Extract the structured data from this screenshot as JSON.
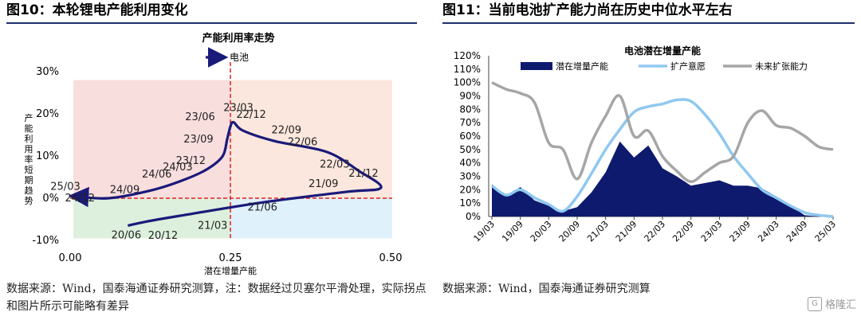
{
  "left_panel": {
    "figure_title": "图10：本轮锂电产能利用变化",
    "source_note": "数据来源：Wind，国泰海通证券研究测算，注：数据经过贝塞尔平滑处理，实际拐点和图片所示可能略有差异"
  },
  "right_panel": {
    "figure_title": "图11：当前电池扩产能力尚在历史中位水平左右",
    "source_note": "数据来源：Wind，国泰海通证券研究测算"
  },
  "watermark": {
    "text": "格隆汇",
    "icon": "gelonghui-logo-icon"
  },
  "chart_data": [
    {
      "type": "line",
      "title": "产能利用率走势",
      "legend": [
        "电池"
      ],
      "legend_position": "top",
      "xlabel": "潜在增量产能",
      "ylabel": "产能利用率短期趋势",
      "xlim": [
        0,
        0.5
      ],
      "ylim": [
        -0.1,
        0.3
      ],
      "x_ticks": [
        "0.00",
        "0.25",
        "0.50"
      ],
      "y_ticks": [
        "-10%",
        "0%",
        "10%",
        "20%",
        "30%"
      ],
      "reference_lines": {
        "x": 0.25,
        "y": 0.0,
        "style": "dashed",
        "color": "#e02020"
      },
      "quadrant_colors": [
        "#f9dede",
        "#fbe7dd",
        "#ddf0dd",
        "#dff1fa"
      ],
      "series": [
        {
          "name": "电池",
          "color": "#1a1a7a",
          "points": [
            {
              "label": "20/06",
              "x": 0.09,
              "y": -0.065
            },
            {
              "label": "20/12",
              "x": 0.12,
              "y": -0.055
            },
            {
              "label": "21/03",
              "x": 0.17,
              "y": -0.042
            },
            {
              "label": "21/06",
              "x": 0.3,
              "y": -0.01
            },
            {
              "label": "21/09",
              "x": 0.43,
              "y": 0.015
            },
            {
              "label": "21/12",
              "x": 0.485,
              "y": 0.025
            },
            {
              "label": "22/03",
              "x": 0.45,
              "y": 0.065
            },
            {
              "label": "22/06",
              "x": 0.4,
              "y": 0.11
            },
            {
              "label": "22/09",
              "x": 0.32,
              "y": 0.135
            },
            {
              "label": "22/12",
              "x": 0.27,
              "y": 0.16
            },
            {
              "label": "23/03",
              "x": 0.255,
              "y": 0.18
            },
            {
              "label": "23/06",
              "x": 0.25,
              "y": 0.17
            },
            {
              "label": "23/09",
              "x": 0.245,
              "y": 0.14
            },
            {
              "label": "23/12",
              "x": 0.238,
              "y": 0.1
            },
            {
              "label": "24/03",
              "x": 0.215,
              "y": 0.07
            },
            {
              "label": "24/06",
              "x": 0.18,
              "y": 0.045
            },
            {
              "label": "24/09",
              "x": 0.13,
              "y": 0.02
            },
            {
              "label": "24/12",
              "x": 0.06,
              "y": 0.0
            },
            {
              "label": "25/03",
              "x": 0.005,
              "y": 0.005
            }
          ]
        }
      ]
    },
    {
      "type": "line",
      "title": "电池潜在增量产能",
      "legend_position": "top",
      "ylim": [
        0,
        1.2
      ],
      "y_ticks": [
        "0%",
        "10%",
        "20%",
        "30%",
        "40%",
        "50%",
        "60%",
        "70%",
        "80%",
        "90%",
        "100%",
        "110%",
        "120%"
      ],
      "categories": [
        "19/03",
        "19/09",
        "20/03",
        "20/09",
        "21/03",
        "21/09",
        "22/03",
        "22/09",
        "23/03",
        "23/09",
        "24/03",
        "24/09",
        "25/03"
      ],
      "x": [
        0,
        1,
        2,
        3,
        4,
        5,
        6,
        7,
        8,
        9,
        10,
        11,
        12,
        13,
        14,
        15,
        16,
        17,
        18,
        19,
        20,
        21,
        22,
        23,
        24
      ],
      "series": [
        {
          "name": "潜在增量产能",
          "style": "area",
          "color": "#0d1a6e",
          "values": [
            0.24,
            0.15,
            0.22,
            0.12,
            0.08,
            0.04,
            0.07,
            0.18,
            0.33,
            0.56,
            0.44,
            0.53,
            0.36,
            0.3,
            0.23,
            0.25,
            0.27,
            0.23,
            0.23,
            0.21,
            0.15,
            0.08,
            0.01,
            0.0,
            0.0
          ]
        },
        {
          "name": "扩产意愿",
          "style": "line",
          "color": "#8fc8f0",
          "values": [
            0.23,
            0.16,
            0.2,
            0.14,
            0.09,
            0.04,
            0.15,
            0.32,
            0.5,
            0.65,
            0.78,
            0.82,
            0.84,
            0.87,
            0.86,
            0.76,
            0.62,
            0.45,
            0.32,
            0.2,
            0.14,
            0.08,
            0.03,
            0.01,
            0.0
          ]
        },
        {
          "name": "未来扩张能力",
          "style": "line",
          "color": "#a6a6a6",
          "values": [
            1.0,
            0.95,
            0.92,
            0.85,
            0.55,
            0.5,
            0.28,
            0.55,
            0.75,
            0.9,
            0.6,
            0.64,
            0.45,
            0.34,
            0.26,
            0.33,
            0.4,
            0.45,
            0.7,
            0.79,
            0.68,
            0.66,
            0.6,
            0.52,
            0.5
          ]
        }
      ]
    }
  ]
}
